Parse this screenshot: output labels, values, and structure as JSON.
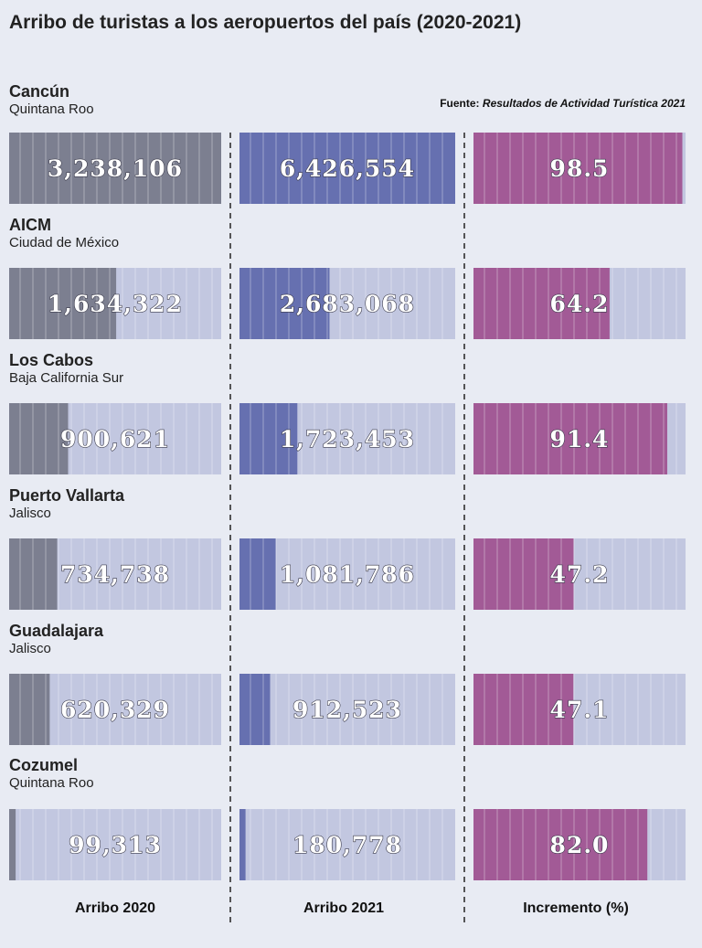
{
  "title": "Arribo de turistas a los aeropuertos del país (2020-2021)",
  "source": {
    "label": "Fuente:",
    "text": "Resultados de Actividad Turística 2021"
  },
  "chart_data": {
    "type": "bar",
    "title": "Arribo de turistas a los aeropuertos del país (2020-2021)",
    "categories": [
      "Cancún",
      "AICM",
      "Los Cabos",
      "Puerto Vallarta",
      "Guadalajara",
      "Cozumel"
    ],
    "category_subtitles": [
      "Quintana Roo",
      "Ciudad de México",
      "Baja California Sur",
      "Jalisco",
      "Jalisco",
      "Quintana Roo"
    ],
    "series": [
      {
        "name": "Arribo 2020",
        "values": [
          3238106,
          1634322,
          900621,
          734738,
          620329,
          99313
        ],
        "labels": [
          "3,238,106",
          "1,634,322",
          "900,621",
          "734,738",
          "620,329",
          "99,313"
        ],
        "max": 3238106
      },
      {
        "name": "Arribo 2021",
        "values": [
          6426554,
          2683068,
          1723453,
          1081786,
          912523,
          180778
        ],
        "labels": [
          "6,426,554",
          "2,683,068",
          "1,723,453",
          "1,081,786",
          "912,523",
          "180,778"
        ],
        "max": 6426554
      },
      {
        "name": "Incremento (%)",
        "values": [
          98.5,
          64.2,
          91.4,
          47.2,
          47.1,
          82.0
        ],
        "labels": [
          "98.5",
          "64.2",
          "91.4",
          "47.2",
          "47.1",
          "82.0"
        ],
        "max": 100
      }
    ],
    "colors": {
      "series": [
        "#7c7f90",
        "#6670b0",
        "#a25a96"
      ],
      "track": "#c2c7e0",
      "gridline": "#ffffff",
      "divider": "#222222"
    }
  }
}
